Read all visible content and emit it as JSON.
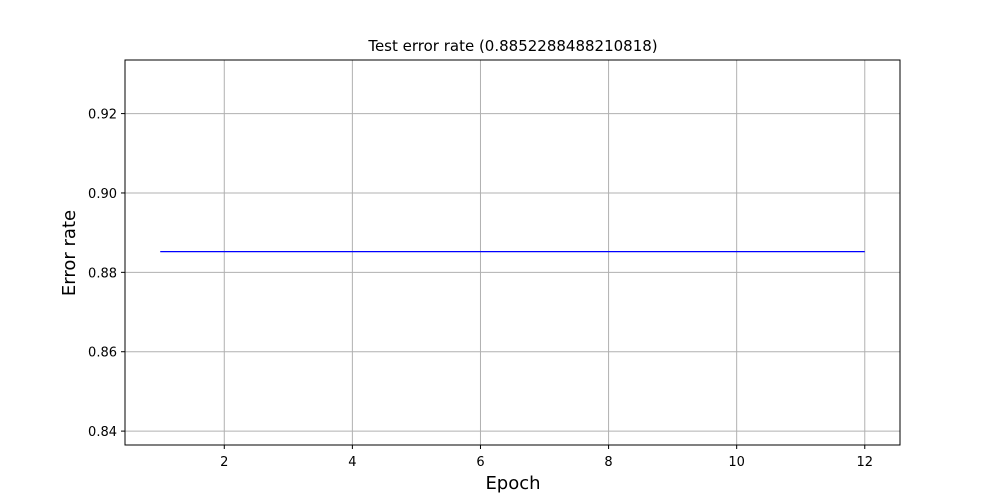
{
  "chart_data": {
    "type": "line",
    "title": "Test error rate (0.8852288488210818)",
    "xlabel": "Epoch",
    "ylabel": "Error rate",
    "xlim": [
      0.45,
      12.55
    ],
    "ylim": [
      0.8365,
      0.9335
    ],
    "xticks": [
      2,
      4,
      6,
      8,
      10,
      12
    ],
    "xtick_labels": [
      "2",
      "4",
      "6",
      "8",
      "10",
      "12"
    ],
    "yticks": [
      0.84,
      0.86,
      0.88,
      0.9,
      0.92
    ],
    "ytick_labels": [
      "0.84",
      "0.86",
      "0.88",
      "0.90",
      "0.92"
    ],
    "grid": true,
    "series": [
      {
        "color": "#0000ff",
        "x": [
          1,
          2,
          3,
          4,
          5,
          6,
          7,
          8,
          9,
          10,
          11,
          12
        ],
        "y": [
          0.8852288488210818,
          0.8852288488210818,
          0.8852288488210818,
          0.8852288488210818,
          0.8852288488210818,
          0.8852288488210818,
          0.8852288488210818,
          0.8852288488210818,
          0.8852288488210818,
          0.8852288488210818,
          0.8852288488210818,
          0.8852288488210818
        ]
      }
    ]
  }
}
